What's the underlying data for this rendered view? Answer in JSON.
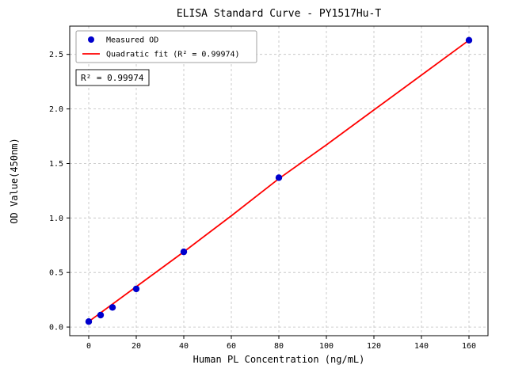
{
  "chart_data": {
    "type": "scatter",
    "title": "ELISA Standard Curve - PY1517Hu-T",
    "xlabel": "Human PL Concentration (ng/mL)",
    "ylabel": "OD Value(450nm)",
    "xlim": [
      -8,
      168
    ],
    "ylim": [
      -0.079,
      2.759
    ],
    "x_ticks": [
      0,
      20,
      40,
      60,
      80,
      100,
      120,
      140,
      160
    ],
    "y_ticks": [
      0.0,
      0.5,
      1.0,
      1.5,
      2.0,
      2.5
    ],
    "y_tick_labels": [
      "0.0",
      "0.5",
      "1.0",
      "1.5",
      "2.0",
      "2.5"
    ],
    "grid": true,
    "legend": {
      "position": "upper-left",
      "entries": [
        {
          "label": "Measured OD",
          "marker": "dot",
          "color": "#0000cd"
        },
        {
          "label": "Quadratic fit (R² = 0.99974)",
          "marker": "line",
          "color": "#ff0000"
        }
      ]
    },
    "annotation": {
      "text": "R² = 0.99974"
    },
    "series": [
      {
        "name": "Measured OD",
        "type": "scatter",
        "color": "#0000cd",
        "x": [
          0,
          5,
          10,
          20,
          40,
          80,
          160
        ],
        "y": [
          0.05,
          0.11,
          0.18,
          0.35,
          0.69,
          1.37,
          2.63
        ]
      },
      {
        "name": "Quadratic fit (R² = 0.99974)",
        "type": "line",
        "color": "#ff0000",
        "x": [
          0,
          20,
          40,
          60,
          80,
          100,
          120,
          140,
          160
        ],
        "y": [
          0.05,
          0.37,
          0.69,
          1.02,
          1.36,
          1.67,
          1.99,
          2.31,
          2.63
        ]
      }
    ]
  }
}
